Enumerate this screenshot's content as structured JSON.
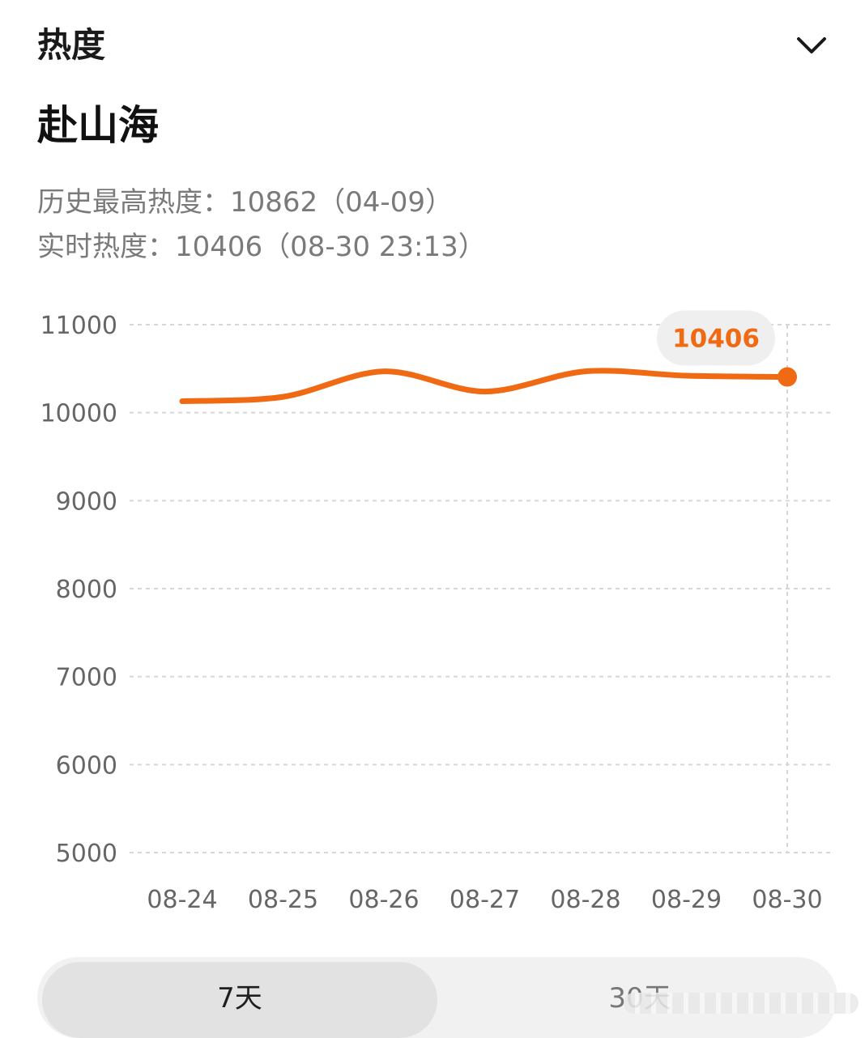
{
  "header": {
    "title": "热度",
    "collapse_icon": "chevron-down-icon"
  },
  "topic": {
    "title": "赴山海"
  },
  "stats": {
    "history_high": "历史最高热度：10862（04-09）",
    "realtime": "实时热度：10406（08-30 23:13）"
  },
  "colors": {
    "accent": "#f06a13",
    "grid": "#d6d6d6",
    "bubble_bg": "#efefef"
  },
  "chart_data": {
    "type": "line",
    "title": "",
    "xlabel": "",
    "ylabel": "",
    "categories": [
      "08-24",
      "08-25",
      "08-26",
      "08-27",
      "08-28",
      "08-29",
      "08-30"
    ],
    "series": [
      {
        "values": [
          10130,
          10180,
          10470,
          10240,
          10470,
          10420,
          10406
        ]
      }
    ],
    "ylim": [
      5000,
      11000
    ],
    "yticks": [
      11000,
      10000,
      9000,
      8000,
      7000,
      6000,
      5000
    ],
    "grid": true,
    "callout": {
      "category": "08-30",
      "label": "10406"
    }
  },
  "tabs": [
    {
      "label": "7天",
      "selected": true
    },
    {
      "label": "30天",
      "selected": false
    }
  ]
}
